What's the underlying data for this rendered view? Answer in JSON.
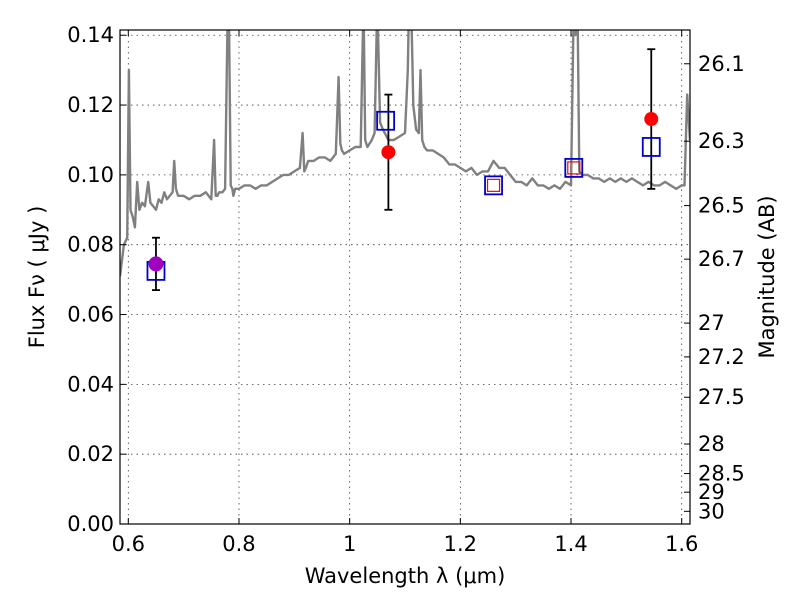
{
  "chart_data": {
    "type": "line",
    "xlabel": "Wavelength  λ (μm)",
    "ylabel": "Flux  Fν  ( μJy )",
    "ylabel_right": "Magnitude (AB)",
    "xlim": [
      0.585,
      1.615
    ],
    "ylim": [
      0.0,
      0.1415
    ],
    "x_ticks": [
      0.6,
      0.8,
      1.0,
      1.2,
      1.4,
      1.6
    ],
    "x_tick_labels": [
      "0.6",
      "0.8",
      "1",
      "1.2",
      "1.4",
      "1.6"
    ],
    "y_ticks": [
      0.0,
      0.02,
      0.04,
      0.06,
      0.08,
      0.1,
      0.12,
      0.14
    ],
    "y_tick_labels": [
      "0.00",
      "0.02",
      "0.04",
      "0.06",
      "0.08",
      "0.10",
      "0.12",
      "0.14"
    ],
    "mag_ticks": [
      26.1,
      26.3,
      26.5,
      26.7,
      27,
      27.2,
      27.5,
      28,
      28.5,
      29,
      30
    ],
    "mag_tick_labels": [
      "26.1",
      "26.3",
      "26.5",
      "26.7",
      "27",
      "27.2",
      "27.5",
      "28",
      "28.5",
      "29",
      "30"
    ],
    "grid": true,
    "spectrum": {
      "color": "#808080",
      "x": [
        0.585,
        0.592,
        0.598,
        0.601,
        0.604,
        0.608,
        0.612,
        0.616,
        0.62,
        0.625,
        0.63,
        0.636,
        0.64,
        0.645,
        0.65,
        0.655,
        0.66,
        0.665,
        0.67,
        0.675,
        0.68,
        0.683,
        0.686,
        0.69,
        0.7,
        0.71,
        0.72,
        0.73,
        0.74,
        0.75,
        0.755,
        0.758,
        0.761,
        0.764,
        0.77,
        0.775,
        0.778,
        0.78,
        0.782,
        0.785,
        0.788,
        0.79,
        0.793,
        0.8,
        0.81,
        0.82,
        0.83,
        0.84,
        0.85,
        0.86,
        0.87,
        0.88,
        0.89,
        0.9,
        0.91,
        0.915,
        0.918,
        0.921,
        0.925,
        0.935,
        0.945,
        0.955,
        0.965,
        0.975,
        0.98,
        0.983,
        0.986,
        0.99,
        1.0,
        1.01,
        1.02,
        1.025,
        1.028,
        1.032,
        1.04,
        1.045,
        1.05,
        1.055,
        1.06,
        1.07,
        1.08,
        1.09,
        1.1,
        1.105,
        1.108,
        1.111,
        1.115,
        1.12,
        1.125,
        1.128,
        1.131,
        1.135,
        1.14,
        1.15,
        1.16,
        1.17,
        1.18,
        1.19,
        1.2,
        1.21,
        1.22,
        1.23,
        1.24,
        1.25,
        1.26,
        1.27,
        1.28,
        1.29,
        1.3,
        1.31,
        1.32,
        1.33,
        1.34,
        1.35,
        1.36,
        1.37,
        1.38,
        1.39,
        1.4,
        1.405,
        1.408,
        1.411,
        1.415,
        1.42,
        1.43,
        1.44,
        1.45,
        1.46,
        1.47,
        1.48,
        1.49,
        1.5,
        1.51,
        1.52,
        1.53,
        1.54,
        1.55,
        1.56,
        1.57,
        1.58,
        1.59,
        1.6,
        1.605,
        1.61,
        1.615
      ],
      "y": [
        0.071,
        0.08,
        0.082,
        0.13,
        0.09,
        0.088,
        0.085,
        0.098,
        0.09,
        0.092,
        0.091,
        0.098,
        0.092,
        0.091,
        0.09,
        0.093,
        0.092,
        0.095,
        0.093,
        0.094,
        0.095,
        0.104,
        0.096,
        0.094,
        0.094,
        0.093,
        0.094,
        0.094,
        0.095,
        0.093,
        0.11,
        0.094,
        0.094,
        0.095,
        0.095,
        0.096,
        0.13,
        0.15,
        0.145,
        0.097,
        0.096,
        0.094,
        0.096,
        0.096,
        0.097,
        0.097,
        0.096,
        0.097,
        0.097,
        0.098,
        0.099,
        0.1,
        0.1,
        0.101,
        0.102,
        0.112,
        0.101,
        0.102,
        0.104,
        0.104,
        0.105,
        0.105,
        0.104,
        0.106,
        0.128,
        0.109,
        0.107,
        0.106,
        0.107,
        0.108,
        0.108,
        0.15,
        0.11,
        0.108,
        0.11,
        0.112,
        0.15,
        0.115,
        0.113,
        0.11,
        0.11,
        0.111,
        0.112,
        0.13,
        0.155,
        0.15,
        0.12,
        0.113,
        0.112,
        0.13,
        0.11,
        0.108,
        0.107,
        0.107,
        0.106,
        0.105,
        0.103,
        0.103,
        0.102,
        0.101,
        0.102,
        0.1,
        0.101,
        0.101,
        0.104,
        0.102,
        0.102,
        0.1,
        0.098,
        0.098,
        0.097,
        0.099,
        0.097,
        0.097,
        0.096,
        0.097,
        0.096,
        0.098,
        0.097,
        0.15,
        0.14,
        0.16,
        0.101,
        0.1,
        0.1,
        0.099,
        0.099,
        0.098,
        0.099,
        0.098,
        0.099,
        0.098,
        0.099,
        0.098,
        0.097,
        0.098,
        0.097,
        0.097,
        0.098,
        0.097,
        0.096,
        0.097,
        0.097,
        0.123,
        0.11
      ]
    },
    "observed_points": {
      "color": "#ff0000",
      "x": [
        0.65,
        1.07,
        1.545
      ],
      "y": [
        0.0745,
        0.1065,
        0.116
      ],
      "yerr": [
        0.0075,
        0.0165,
        0.02
      ]
    },
    "highlight_point": {
      "color": "#a000c0",
      "x": 0.65,
      "y": 0.0745
    },
    "model_squares": {
      "color": "#0000cc",
      "x": [
        0.65,
        1.065,
        1.26,
        1.405,
        1.545
      ],
      "y": [
        0.0725,
        0.1155,
        0.097,
        0.102,
        0.108
      ]
    },
    "small_squares": {
      "color": "#ff0000",
      "x": [
        1.26,
        1.405
      ],
      "y": [
        0.097,
        0.102
      ]
    }
  }
}
